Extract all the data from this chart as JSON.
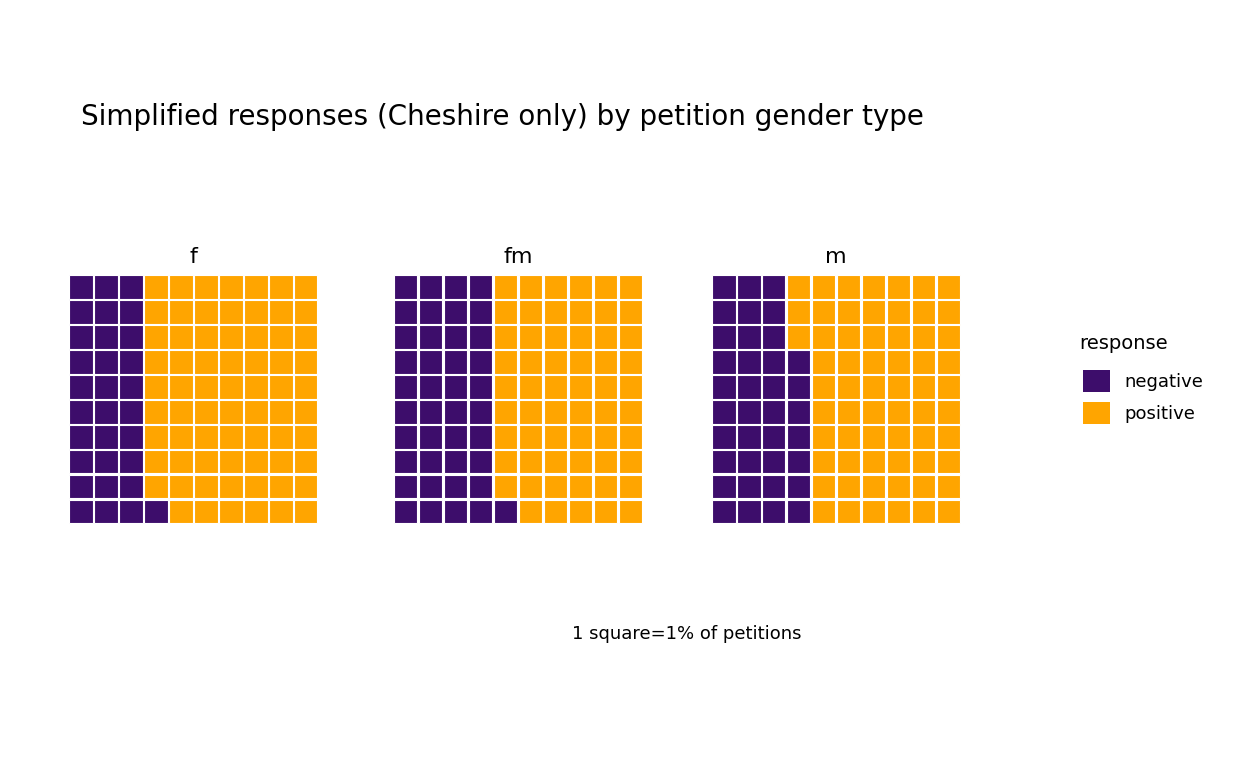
{
  "title": "Simplified responses (Cheshire only) by petition gender type",
  "panels": [
    "f",
    "fm",
    "m"
  ],
  "negative_color": "#3D0D6B",
  "positive_color": "#FFA500",
  "grid_color": "white",
  "background_color": "white",
  "legend_title": "response",
  "legend_labels": [
    "negative",
    "positive"
  ],
  "caption": "1 square=1% of petitions",
  "grid_size": 10,
  "neg_counts": [
    31,
    41,
    37
  ],
  "fill_direction": "column_bottom_to_top"
}
